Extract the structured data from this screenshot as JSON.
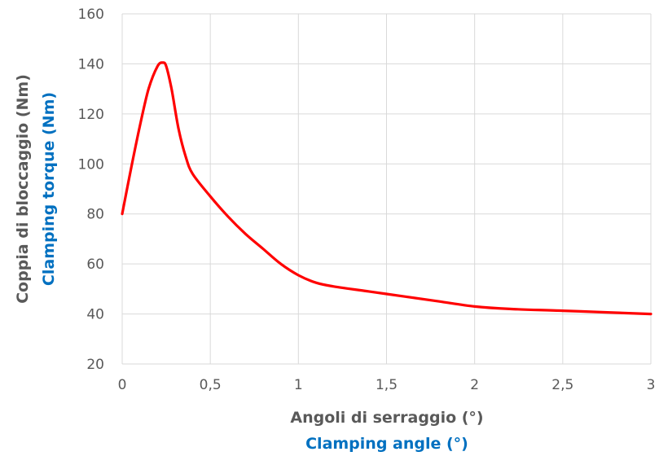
{
  "chart_data": {
    "type": "line",
    "xlabel": "Angoli di serraggio (°)",
    "xlabel_en": "Clamping angle (°)",
    "ylabel": "Coppia di bloccaggio (Nm)",
    "ylabel_en": "Clamping torque (Nm)",
    "xlim": [
      0,
      3
    ],
    "ylim": [
      20,
      160
    ],
    "x_ticks": [
      "0",
      "0,5",
      "1",
      "1,5",
      "2",
      "2,5",
      "3"
    ],
    "y_ticks": [
      "20",
      "40",
      "60",
      "80",
      "100",
      "120",
      "140",
      "160"
    ],
    "grid": true,
    "series": [
      {
        "color": "#ff0000",
        "x": [
          0,
          0.05,
          0.1,
          0.15,
          0.2,
          0.23,
          0.25,
          0.28,
          0.32,
          0.36,
          0.4,
          0.5,
          0.6,
          0.7,
          0.8,
          0.9,
          1.0,
          1.1,
          1.2,
          1.4,
          1.6,
          1.8,
          2.0,
          2.2,
          2.5,
          2.8,
          3.0
        ],
        "y": [
          80,
          98,
          115,
          130,
          139,
          140.5,
          139,
          130,
          114,
          103,
          96,
          87,
          79,
          72,
          66,
          60,
          55.5,
          52.5,
          51,
          49,
          47,
          45,
          43,
          42,
          41.3,
          40.5,
          40
        ]
      }
    ],
    "colors": {
      "ylabel_primary": "#595959",
      "ylabel_secondary": "#0070c0",
      "xlabel_primary": "#595959",
      "xlabel_secondary": "#0070c0"
    }
  }
}
